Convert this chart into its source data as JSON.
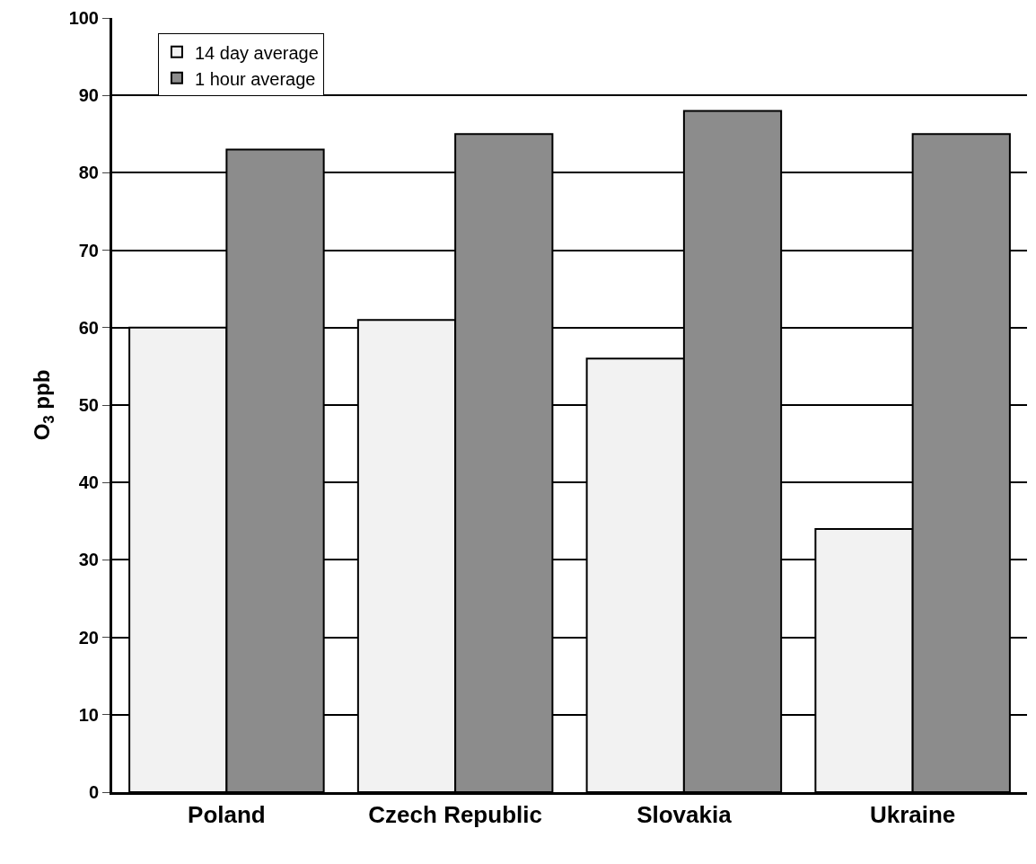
{
  "chart_data": {
    "type": "bar",
    "ylabel": "O$_{3}$ ppb",
    "categories": [
      "Poland",
      "Czech Republic",
      "Slovakia",
      "Ukraine"
    ],
    "series": [
      {
        "name": "14 day average",
        "color": "#f2f2f2",
        "values": [
          60,
          61,
          56,
          34
        ]
      },
      {
        "name": "1 hour average",
        "color": "#8c8c8c",
        "values": [
          83,
          85,
          88,
          85
        ]
      }
    ],
    "ylim": [
      0,
      100
    ],
    "yticks": [
      0,
      10,
      20,
      30,
      40,
      50,
      60,
      70,
      80,
      90,
      100
    ],
    "grid": "y",
    "legend": "top left"
  }
}
